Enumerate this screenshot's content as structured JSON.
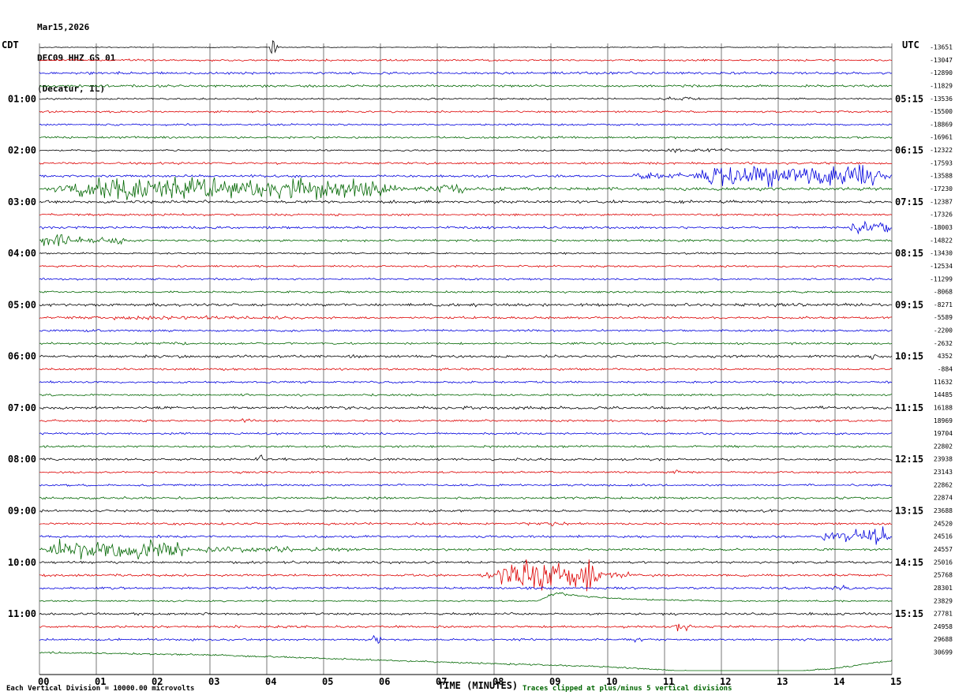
{
  "header": {
    "date": "Mar15,2026",
    "station": "DEC09 HHZ GS 01",
    "location": "(Decatur, IL)"
  },
  "axis": {
    "left_label": "CDT",
    "right_label": "UTC",
    "x_title": "TIME (MINUTES)"
  },
  "footer": {
    "left": "Each Vertical Division = 10000.00 microvolts",
    "right": "Traces clipped at plus/minus 5 vertical divisions"
  },
  "colors": {
    "black": "#000000",
    "red": "#dd0000",
    "blue": "#0000dd",
    "green": "#006600",
    "grid": "#555555"
  },
  "chart_data": {
    "type": "line",
    "subtype": "helicorder-seismogram",
    "title": "DEC09 HHZ GS 01 (Decatur, IL) Mar15,2026",
    "x_range_minutes": [
      0,
      15
    ],
    "minutes_per_row": 15,
    "rows_per_hour": 4,
    "grid": "vertical lines every 1 minute",
    "x_ticks": [
      "00",
      "01",
      "02",
      "03",
      "04",
      "05",
      "06",
      "07",
      "08",
      "09",
      "10",
      "11",
      "12",
      "13",
      "14",
      "15"
    ],
    "left_times": [
      "01:00",
      "02:00",
      "03:00",
      "04:00",
      "05:00",
      "06:00",
      "07:00",
      "08:00",
      "09:00",
      "10:00",
      "11:00"
    ],
    "right_times": [
      "05:15",
      "06:15",
      "07:15",
      "08:15",
      "09:15",
      "10:15",
      "11:15",
      "12:15",
      "13:15",
      "14:15",
      "15:15"
    ],
    "offsets": [
      -13651,
      -13047,
      -12890,
      -11829,
      -13536,
      -15500,
      -18869,
      -16961,
      -12322,
      -17593,
      -13588,
      -17230,
      -12387,
      -17326,
      -18003,
      -14822,
      -13430,
      -12534,
      -11299,
      -8068,
      -8271,
      -5589,
      -2200,
      -2632,
      4352,
      -884,
      11632,
      14485,
      16188,
      18969,
      19704,
      22802,
      23938,
      23143,
      22862,
      22874,
      23688,
      24520,
      24516,
      24557,
      25016,
      25768,
      28301,
      23829,
      27781,
      24958,
      29688,
      30699
    ],
    "row_color_cycle": [
      "black",
      "red",
      "blue",
      "green"
    ],
    "rows": [
      {
        "a": 0.5,
        "ev": [
          {
            "t": "burst",
            "s": 4.05,
            "e": 4.2,
            "a": 14
          }
        ]
      },
      {
        "a": 1.1
      },
      {
        "a": 1.4
      },
      {
        "a": 1.4
      },
      {
        "a": 1.0,
        "ev": [
          {
            "t": "burst",
            "s": 10.8,
            "e": 11.7,
            "a": 2.5
          }
        ]
      },
      {
        "a": 1.1
      },
      {
        "a": 1.1
      },
      {
        "a": 1.2
      },
      {
        "a": 1.0,
        "ev": [
          {
            "t": "burst",
            "s": 10.9,
            "e": 12.3,
            "a": 2.2
          }
        ]
      },
      {
        "a": 1.2
      },
      {
        "a": 1.4,
        "ev": [
          {
            "t": "burst",
            "s": 10.3,
            "e": 11.4,
            "a": 4
          },
          {
            "t": "burst",
            "s": 11.4,
            "e": 15,
            "a": 13
          }
        ]
      },
      {
        "a": 1.8,
        "ev": [
          {
            "t": "burst",
            "s": 0,
            "e": 6.6,
            "a": 12
          },
          {
            "t": "burst",
            "s": 6.6,
            "e": 7.6,
            "a": 5
          }
        ]
      },
      {
        "a": 1.6
      },
      {
        "a": 1.2
      },
      {
        "a": 1.3,
        "ev": [
          {
            "t": "burst",
            "s": 14.2,
            "e": 15,
            "a": 8
          }
        ]
      },
      {
        "a": 1.3,
        "ev": [
          {
            "t": "burst",
            "s": 0,
            "e": 0.55,
            "a": 11
          },
          {
            "t": "burst",
            "s": 0.55,
            "e": 1.6,
            "a": 4
          }
        ]
      },
      {
        "a": 1.0
      },
      {
        "a": 1.1
      },
      {
        "a": 1.1
      },
      {
        "a": 1.1
      },
      {
        "a": 1.7
      },
      {
        "a": 1.3,
        "ev": [
          {
            "t": "burst",
            "s": 0,
            "e": 5.2,
            "a": 2.2
          }
        ]
      },
      {
        "a": 1.2
      },
      {
        "a": 1.2
      },
      {
        "a": 1.5,
        "ev": [
          {
            "t": "burst",
            "s": 14.55,
            "e": 14.75,
            "a": 3
          }
        ]
      },
      {
        "a": 1.2
      },
      {
        "a": 1.2
      },
      {
        "a": 1.2
      },
      {
        "a": 1.6
      },
      {
        "a": 1.2,
        "ev": [
          {
            "t": "burst",
            "s": 3.55,
            "e": 3.72,
            "a": 4
          }
        ]
      },
      {
        "a": 1.2
      },
      {
        "a": 1.2
      },
      {
        "a": 1.4,
        "ev": [
          {
            "t": "burst",
            "s": 3.8,
            "e": 3.95,
            "a": 6
          }
        ]
      },
      {
        "a": 1.2,
        "ev": [
          {
            "t": "burst",
            "s": 0.35,
            "e": 0.5,
            "a": 3
          },
          {
            "t": "burst",
            "s": 11.1,
            "e": 11.3,
            "a": 3
          }
        ]
      },
      {
        "a": 1.2
      },
      {
        "a": 1.3
      },
      {
        "a": 1.4
      },
      {
        "a": 1.3,
        "ev": [
          {
            "t": "burst",
            "s": 8.5,
            "e": 9.4,
            "a": 2.5
          }
        ]
      },
      {
        "a": 1.3,
        "ev": [
          {
            "t": "burst",
            "s": 13.7,
            "e": 15,
            "a": 10
          }
        ]
      },
      {
        "a": 1.3,
        "ev": [
          {
            "t": "burst",
            "s": 0,
            "e": 2.7,
            "a": 11
          },
          {
            "t": "burst",
            "s": 2.7,
            "e": 4.6,
            "a": 4
          },
          {
            "t": "burst",
            "s": 4.6,
            "e": 5.6,
            "a": 2.2
          }
        ]
      },
      {
        "a": 1.4
      },
      {
        "a": 1.3,
        "ev": [
          {
            "t": "burst",
            "s": 7.7,
            "e": 7.95,
            "a": 4
          },
          {
            "t": "burst",
            "s": 7.95,
            "e": 9.95,
            "a": 18
          },
          {
            "t": "burst",
            "s": 9.95,
            "e": 10.45,
            "a": 3.5
          },
          {
            "t": "burst",
            "s": 13.85,
            "e": 14.05,
            "a": 2.5
          }
        ]
      },
      {
        "a": 1.3,
        "ev": [
          {
            "t": "burst",
            "s": 13.8,
            "e": 14.4,
            "a": 3
          }
        ]
      },
      {
        "a": 0.9,
        "ev": [
          {
            "t": "bump",
            "s": 8.7,
            "p": 9.15,
            "e": 11.8,
            "a": -10
          },
          {
            "t": "burst",
            "s": 8.9,
            "e": 9.4,
            "a": 2
          }
        ]
      },
      {
        "a": 1.3,
        "ev": [
          {
            "t": "burst",
            "s": 6.15,
            "e": 6.32,
            "a": 3
          }
        ]
      },
      {
        "a": 1.3,
        "ev": [
          {
            "t": "burst",
            "s": 11.15,
            "e": 11.5,
            "a": 5
          },
          {
            "t": "burst",
            "s": 13.55,
            "e": 13.72,
            "a": 3
          }
        ]
      },
      {
        "a": 1.2,
        "ev": [
          {
            "t": "burst",
            "s": 5.85,
            "e": 6.02,
            "a": 5
          },
          {
            "t": "burst",
            "s": 10.45,
            "e": 10.62,
            "a": 5
          }
        ]
      },
      {
        "a": 1.0,
        "ev": [
          {
            "t": "drift",
            "pts": [
              [
                0,
                0
              ],
              [
                3,
                3
              ],
              [
                7,
                12
              ],
              [
                10,
                18
              ],
              [
                12,
                26
              ],
              [
                13,
                26
              ],
              [
                14,
                20
              ],
              [
                15,
                10
              ]
            ]
          },
          {
            "t": "burst",
            "s": 12.0,
            "e": 12.6,
            "a": 3
          }
        ]
      }
    ]
  }
}
